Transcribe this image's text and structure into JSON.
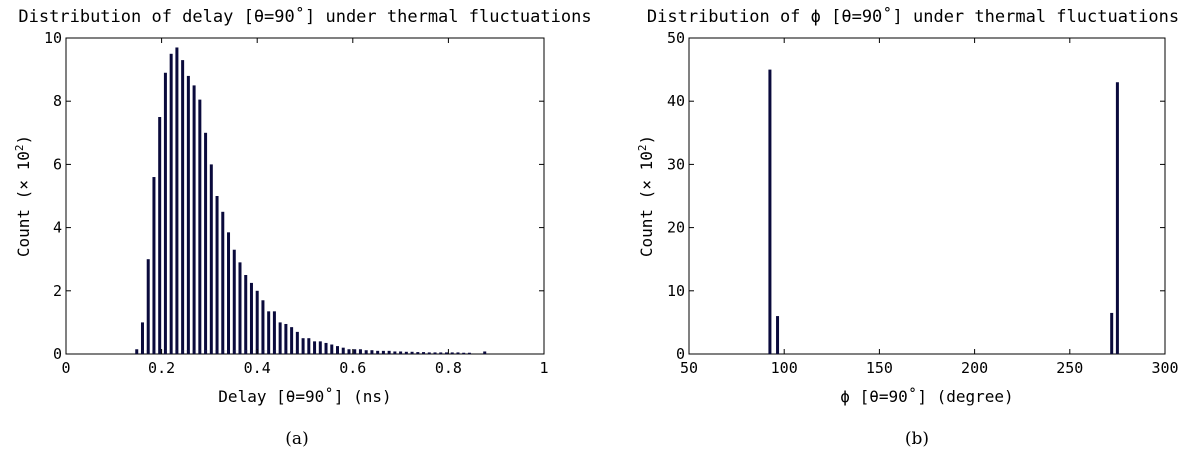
{
  "chart_data": [
    {
      "type": "bar",
      "title": "Distribution of delay [θ=90˚] under thermal fluctuations",
      "xlabel": "Delay [θ=90˚] (ns)",
      "ylabel_base": "Count (× 10",
      "ylabel_exp": "2",
      "ylabel_close": ")",
      "caption": "(a)",
      "xlim": [
        0,
        1
      ],
      "ylim": [
        0,
        10
      ],
      "xticks": [
        0,
        0.2,
        0.4,
        0.6,
        0.8,
        1
      ],
      "xtick_labels": [
        "0",
        "0.2",
        "0.4",
        "0.6",
        "0.8",
        "1"
      ],
      "yticks": [
        0,
        2,
        4,
        6,
        8,
        10
      ],
      "ytick_labels": [
        "0",
        "2",
        "4",
        "6",
        "8",
        "10"
      ],
      "bar_color": "#0a0a3c",
      "x": [
        0.148,
        0.16,
        0.172,
        0.184,
        0.196,
        0.208,
        0.22,
        0.232,
        0.244,
        0.256,
        0.268,
        0.28,
        0.292,
        0.304,
        0.316,
        0.328,
        0.34,
        0.352,
        0.364,
        0.376,
        0.388,
        0.4,
        0.412,
        0.424,
        0.436,
        0.448,
        0.46,
        0.472,
        0.484,
        0.496,
        0.508,
        0.52,
        0.532,
        0.544,
        0.556,
        0.568,
        0.58,
        0.592,
        0.604,
        0.616,
        0.628,
        0.64,
        0.652,
        0.664,
        0.676,
        0.688,
        0.7,
        0.712,
        0.724,
        0.736,
        0.748,
        0.76,
        0.772,
        0.784,
        0.796,
        0.808,
        0.82,
        0.832,
        0.844,
        0.876
      ],
      "values": [
        0.15,
        1.0,
        3.0,
        5.6,
        7.5,
        8.9,
        9.5,
        9.7,
        9.3,
        8.8,
        8.5,
        8.05,
        7.0,
        6.0,
        5.0,
        4.5,
        3.85,
        3.3,
        2.9,
        2.5,
        2.25,
        2.0,
        1.7,
        1.35,
        1.35,
        1.0,
        0.95,
        0.85,
        0.7,
        0.5,
        0.5,
        0.4,
        0.4,
        0.35,
        0.3,
        0.25,
        0.2,
        0.15,
        0.15,
        0.15,
        0.12,
        0.12,
        0.1,
        0.1,
        0.1,
        0.08,
        0.08,
        0.07,
        0.07,
        0.06,
        0.06,
        0.05,
        0.05,
        0.05,
        0.05,
        0.05,
        0.05,
        0.04,
        0.04,
        0.08
      ]
    },
    {
      "type": "bar",
      "title": "Distribution of ϕ [θ=90˚] under thermal fluctuations",
      "xlabel": "ϕ [θ=90˚] (degree)",
      "ylabel_base": "Count (× 10",
      "ylabel_exp": "2",
      "ylabel_close": ")",
      "caption": "(b)",
      "xlim": [
        50,
        300
      ],
      "ylim": [
        0,
        50
      ],
      "xticks": [
        50,
        100,
        150,
        200,
        250,
        300
      ],
      "xtick_labels": [
        "50",
        "100",
        "150",
        "200",
        "250",
        "300"
      ],
      "yticks": [
        0,
        10,
        20,
        30,
        40,
        50
      ],
      "ytick_labels": [
        "0",
        "10",
        "20",
        "30",
        "40",
        "50"
      ],
      "bar_color": "#0a0a3c",
      "x": [
        92.5,
        96.5,
        272,
        275
      ],
      "values": [
        45,
        6,
        6.5,
        43
      ]
    }
  ]
}
